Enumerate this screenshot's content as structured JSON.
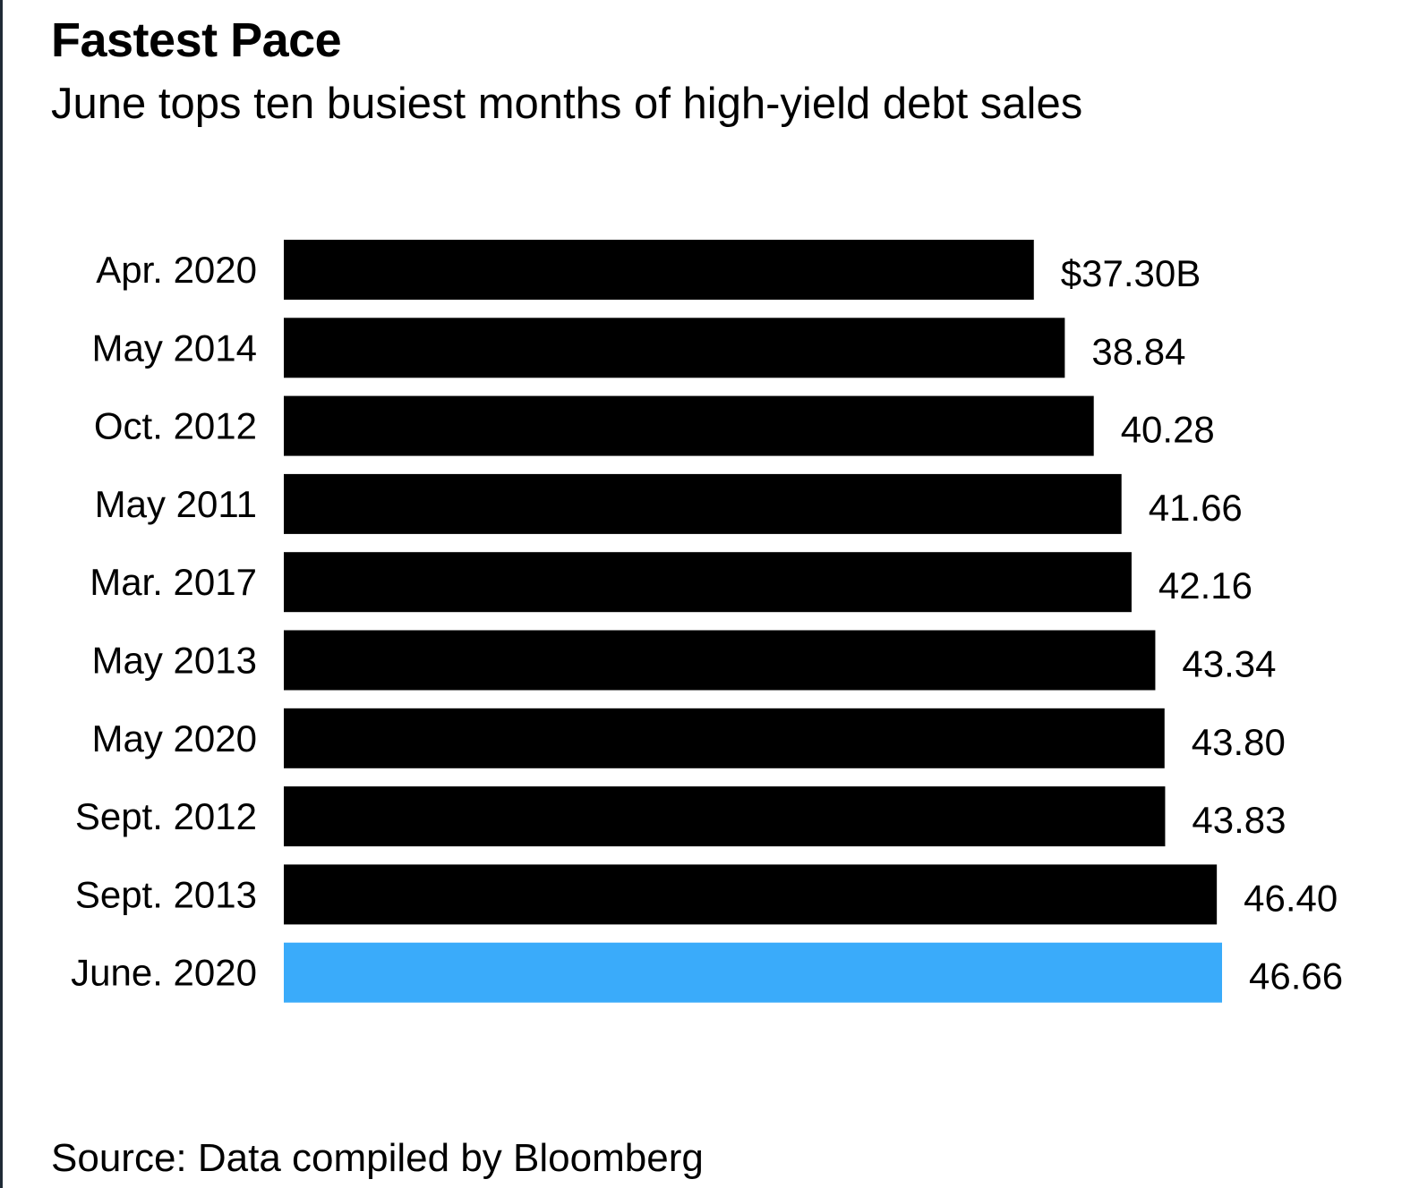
{
  "chart_data": {
    "type": "bar",
    "orientation": "horizontal",
    "title": "Fastest Pace",
    "subtitle": "June tops ten busiest months of high-yield debt sales",
    "source": "Source: Data compiled by Bloomberg",
    "categories": [
      "Apr. 2020",
      "May 2014",
      "Oct. 2012",
      "May 2011",
      "Mar. 2017",
      "May 2013",
      "May 2020",
      "Sept. 2012",
      "Sept. 2013",
      "June. 2020"
    ],
    "values": [
      37.3,
      38.84,
      40.28,
      41.66,
      42.16,
      43.34,
      43.8,
      43.83,
      46.4,
      46.66
    ],
    "value_labels": [
      "$37.30B",
      "38.84",
      "40.28",
      "41.66",
      "42.16",
      "43.34",
      "43.80",
      "43.83",
      "46.40",
      "46.66"
    ],
    "unit": "$ billions",
    "highlight_index": 9,
    "colors": {
      "default": "#000000",
      "highlight": "#3aabfa"
    },
    "xlim": [
      0,
      46.66
    ],
    "grid": false,
    "legend": "none",
    "xlabel": "",
    "ylabel": ""
  }
}
